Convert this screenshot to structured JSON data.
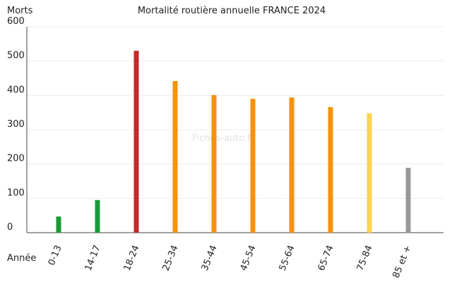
{
  "chart_data": {
    "type": "bar",
    "title": "Mortalité routière annuelle FRANCE 2024",
    "ylabel": "Morts",
    "xlabel": "Année",
    "ylim": [
      0,
      600
    ],
    "yticks": [
      0,
      100,
      200,
      300,
      400,
      500,
      600
    ],
    "grid": true,
    "categories": [
      "0-13",
      "14-17",
      "18-24",
      "25-34",
      "35-44",
      "45-54",
      "55-64",
      "65-74",
      "75-84",
      "85 et +"
    ],
    "values": [
      47,
      95,
      530,
      442,
      401,
      390,
      394,
      366,
      348,
      189
    ],
    "colors": [
      "#1a9a36",
      "#1a9a36",
      "#c62828",
      "#f7920e",
      "#f7920e",
      "#f7920e",
      "#f7920e",
      "#f7920e",
      "#ffd34f",
      "#999999"
    ],
    "watermark": "Fiches-auto.fr"
  }
}
